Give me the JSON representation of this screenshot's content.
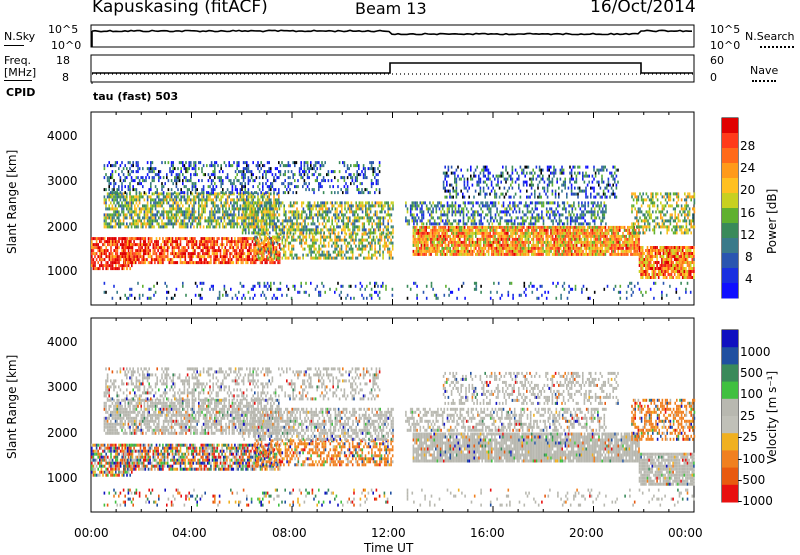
{
  "header": {
    "station": "Kapuskasing (fitACF)",
    "beam": "Beam 13",
    "date": "16/Oct/2014"
  },
  "top_panel": {
    "left_label": "N.Sky",
    "left_ticks": [
      "10^5",
      "10^0"
    ],
    "right_ticks": [
      "10^5",
      "10^0"
    ],
    "right_label": "N.Search"
  },
  "freq_panel": {
    "left_label_1": "Freq.",
    "left_label_2": "[MHz]",
    "left_ticks": [
      "18",
      "8"
    ],
    "right_ticks": [
      "60",
      "0"
    ],
    "right_label": "Nave"
  },
  "cpid_label": "CPID",
  "cpid_value": "tau (fast) 503",
  "chart_data": [
    {
      "type": "heatmap",
      "name": "power",
      "ylabel": "Slant Range [km]",
      "y_ticks": [
        "4000",
        "3000",
        "2000",
        "1000"
      ],
      "ylim": [
        180,
        4500
      ],
      "x_ticks": [
        "00:00",
        "04:00",
        "08:00",
        "12:00",
        "16:00",
        "20:00",
        "00:00"
      ],
      "colorbar": {
        "label": "Power [dB]",
        "ticks": [
          "28",
          "24",
          "20",
          "16",
          "12",
          "8",
          "4"
        ],
        "colors": [
          "#e00000",
          "#ff3a1a",
          "#ff6a1a",
          "#ff9a1a",
          "#ffc020",
          "#c8d020",
          "#60b030",
          "#3a8a5a",
          "#3a7a8a",
          "#2a55b0",
          "#1a30e0",
          "#1010ff"
        ]
      }
    },
    {
      "type": "heatmap",
      "name": "velocity",
      "ylabel": "Slant Range [km]",
      "y_ticks": [
        "4000",
        "3000",
        "2000",
        "1000"
      ],
      "ylim": [
        180,
        4500
      ],
      "x_ticks": [
        "00:00",
        "04:00",
        "08:00",
        "12:00",
        "16:00",
        "20:00",
        "00:00"
      ],
      "xlabel": "Time UT",
      "colorbar": {
        "label": "Velocity [m s⁻¹]",
        "ticks": [
          "1000",
          "500",
          "100",
          "25",
          "-25",
          "-100",
          "-500",
          "-1000"
        ],
        "colors": [
          "#1010c0",
          "#2050a0",
          "#3a8a5a",
          "#40c040",
          "#b8b8b0",
          "#c0c0b8",
          "#f0b020",
          "#f08020",
          "#e85a10",
          "#e81010"
        ]
      }
    }
  ]
}
